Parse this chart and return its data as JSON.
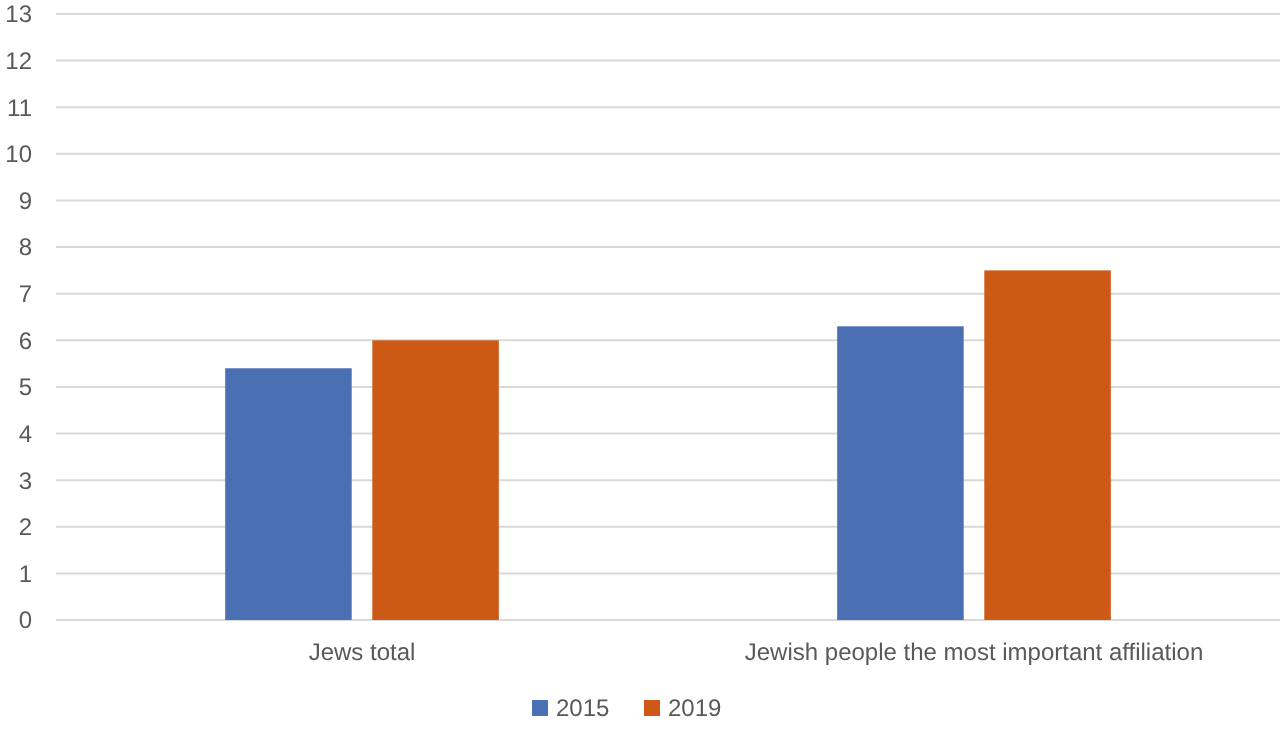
{
  "chart_data": {
    "type": "bar",
    "categories": [
      "Jews total",
      "Jewish people the most important affiliation"
    ],
    "series": [
      {
        "name": "2015",
        "color": "#4a6fb3",
        "values": [
          5.4,
          6.3
        ]
      },
      {
        "name": "2019",
        "color": "#cc5a16",
        "values": [
          6.0,
          7.5
        ]
      }
    ],
    "ylim": [
      0,
      13
    ],
    "yticks": [
      0,
      1,
      2,
      3,
      4,
      5,
      6,
      7,
      8,
      9,
      10,
      11,
      12,
      13
    ],
    "grid": "y",
    "legend": "bottom"
  }
}
